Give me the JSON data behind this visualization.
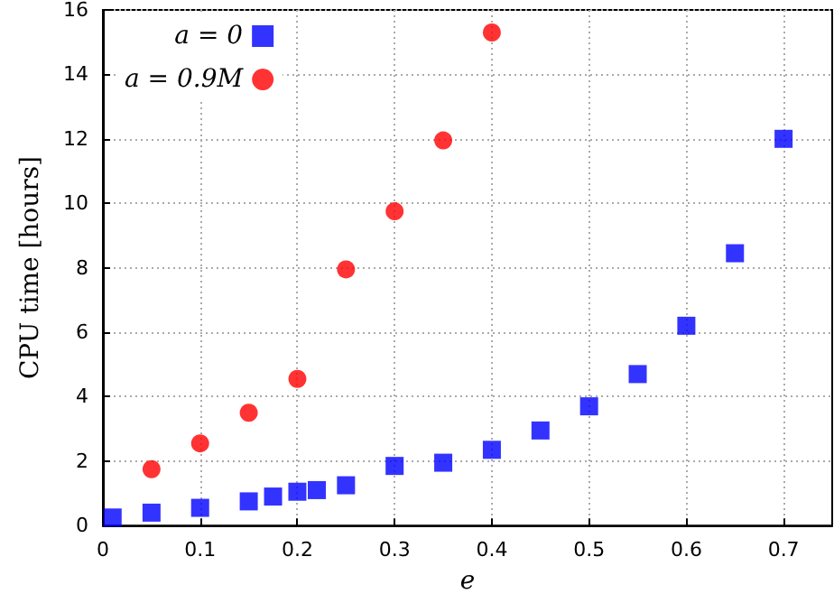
{
  "chart_data": {
    "type": "scatter",
    "xlabel": "e",
    "ylabel": "CPU time [hours]",
    "xlim": [
      0,
      0.75
    ],
    "xticks": [
      0,
      0.1,
      0.2,
      0.3,
      0.4,
      0.5,
      0.6,
      0.7
    ],
    "ylim": [
      0,
      16
    ],
    "yticks": [
      0,
      2,
      4,
      6,
      8,
      10,
      12,
      14,
      16
    ],
    "grid": true,
    "legend": "top left",
    "series": [
      {
        "name": "a = 0",
        "color": "#0000ff",
        "marker": "square",
        "x": [
          0.01,
          0.05,
          0.1,
          0.15,
          0.175,
          0.2,
          0.22,
          0.25,
          0.3,
          0.35,
          0.4,
          0.45,
          0.5,
          0.55,
          0.6,
          0.65,
          0.7
        ],
        "values": [
          0.25,
          0.4,
          0.55,
          0.75,
          0.9,
          1.05,
          1.1,
          1.25,
          1.85,
          1.95,
          2.35,
          2.95,
          3.7,
          4.7,
          6.2,
          8.45,
          12.0
        ]
      },
      {
        "name": "a = 0.9M",
        "color": "#ff0000",
        "marker": "circle",
        "x": [
          0.05,
          0.1,
          0.15,
          0.2,
          0.25,
          0.3,
          0.35,
          0.4
        ],
        "values": [
          1.75,
          2.55,
          3.5,
          4.55,
          7.95,
          9.75,
          11.95,
          15.3
        ]
      }
    ]
  }
}
